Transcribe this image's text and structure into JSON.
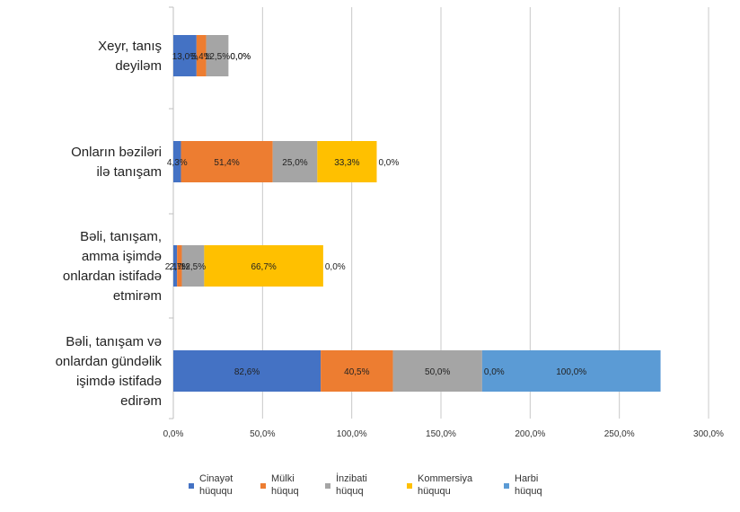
{
  "chart_data": {
    "type": "bar",
    "orientation": "horizontal",
    "stacked": true,
    "categories": [
      [
        "Xeyr, tanış",
        "deyiləm"
      ],
      [
        "Onların bəziləri",
        "ilə tanışam"
      ],
      [
        "Bəli, tanışam,",
        "amma işimdə",
        "onlardan istifadə",
        "etmirəm"
      ],
      [
        "Bəli, tanışam və",
        "onlardan gündəlik",
        "işimdə istifadə",
        "edirəm"
      ]
    ],
    "series": [
      {
        "name": [
          "Cinayət",
          "hüququ"
        ],
        "color": "#4472C4",
        "values": [
          13.0,
          4.3,
          2.1,
          82.6
        ],
        "labels": [
          "13,0%",
          "4,3%",
          "2,1%",
          "82,6%"
        ]
      },
      {
        "name": [
          "Mülki",
          "hüquq"
        ],
        "color": "#ED7D31",
        "values": [
          5.4,
          51.4,
          2.7,
          40.5
        ],
        "labels": [
          "5,4%",
          "51,4%",
          "2,7%",
          "40,5%"
        ]
      },
      {
        "name": [
          "İnzibati",
          "hüquq"
        ],
        "color": "#A5A5A5",
        "values": [
          12.5,
          25.0,
          12.5,
          50.0
        ],
        "labels": [
          "12,5%",
          "25,0%",
          "12,5%",
          "50,0%"
        ]
      },
      {
        "name": [
          "Kommersiya",
          "hüququ"
        ],
        "color": "#FFC000",
        "values": [
          0.0,
          33.3,
          66.7,
          0.0
        ],
        "labels": [
          "0,0%",
          "33,3%",
          "66,7%",
          "0,0%"
        ]
      },
      {
        "name": [
          "Harbi",
          "hüquq"
        ],
        "color": "#5B9BD5",
        "values": [
          0.0,
          0.0,
          0.0,
          100.0
        ],
        "labels": [
          "0,0%",
          "0,0%",
          "0,0%",
          "100,0%"
        ]
      }
    ],
    "x_ticks": [
      "0,0%",
      "50,0%",
      "100,0%",
      "150,0%",
      "200,0%",
      "250,0%",
      "300,0%"
    ],
    "xlim": [
      0,
      300
    ],
    "grid": true,
    "legend_position": "bottom"
  }
}
